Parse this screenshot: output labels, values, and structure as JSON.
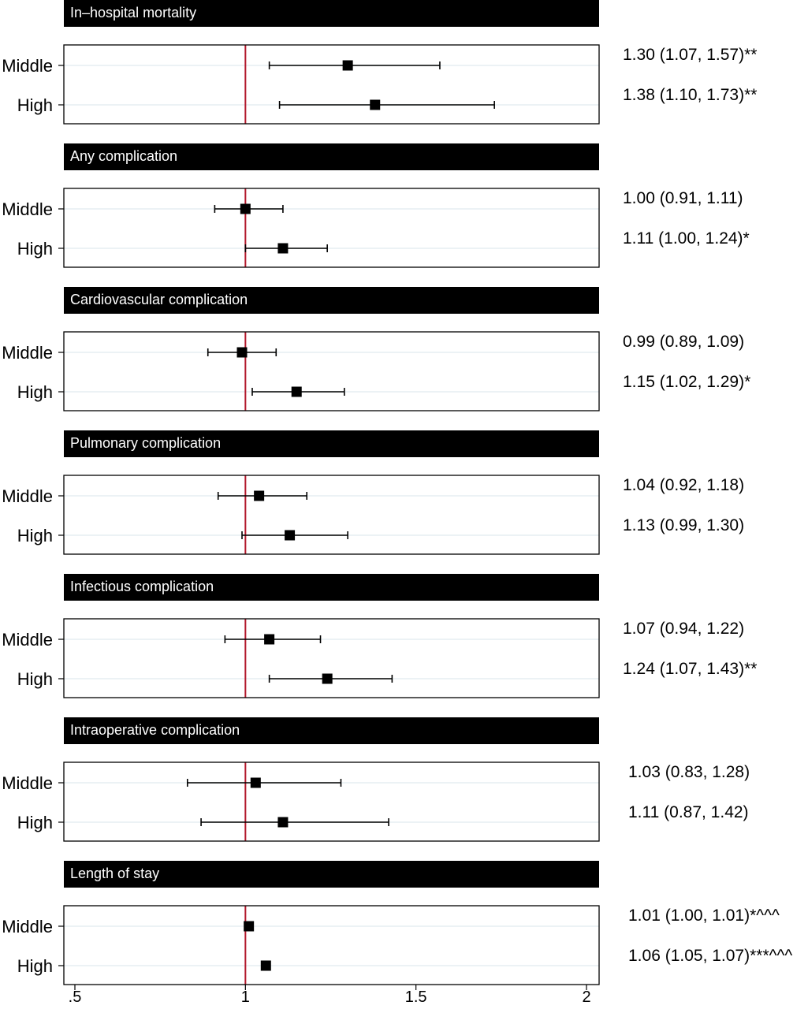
{
  "colors": {
    "header_background": "#000000",
    "header_text": "#ffffff",
    "reference_line": "#b2182b",
    "row_guide": "#e6eef2",
    "marker": "#000000"
  },
  "chart_data": {
    "type": "forest",
    "reference_value": 1,
    "xlim": [
      0.5,
      2
    ],
    "x_ticks": [
      {
        "value": 0.5,
        "label": ".5"
      },
      {
        "value": 1,
        "label": "1"
      },
      {
        "value": 1.5,
        "label": "1.5"
      },
      {
        "value": 2,
        "label": "2"
      }
    ],
    "panels": [
      {
        "title": "In–hospital mortality",
        "rows": [
          {
            "label": "Middle",
            "estimate": 1.3,
            "lower": 1.07,
            "upper": 1.57,
            "text": "1.30 (1.07, 1.57)**"
          },
          {
            "label": "High",
            "estimate": 1.38,
            "lower": 1.1,
            "upper": 1.73,
            "text": "1.38 (1.10, 1.73)**"
          }
        ]
      },
      {
        "title": "Any complication",
        "rows": [
          {
            "label": "Middle",
            "estimate": 1.0,
            "lower": 0.91,
            "upper": 1.11,
            "text": "1.00 (0.91, 1.11)"
          },
          {
            "label": "High",
            "estimate": 1.11,
            "lower": 1.0,
            "upper": 1.24,
            "text": "1.11 (1.00, 1.24)*"
          }
        ]
      },
      {
        "title": "Cardiovascular complication",
        "rows": [
          {
            "label": "Middle",
            "estimate": 0.99,
            "lower": 0.89,
            "upper": 1.09,
            "text": "0.99 (0.89, 1.09)"
          },
          {
            "label": "High",
            "estimate": 1.15,
            "lower": 1.02,
            "upper": 1.29,
            "text": "1.15 (1.02, 1.29)*"
          }
        ]
      },
      {
        "title": "Pulmonary complication",
        "rows": [
          {
            "label": "Middle",
            "estimate": 1.04,
            "lower": 0.92,
            "upper": 1.18,
            "text": "1.04 (0.92, 1.18)"
          },
          {
            "label": "High",
            "estimate": 1.13,
            "lower": 0.99,
            "upper": 1.3,
            "text": "1.13 (0.99, 1.30)"
          }
        ]
      },
      {
        "title": "Infectious complication",
        "rows": [
          {
            "label": "Middle",
            "estimate": 1.07,
            "lower": 0.94,
            "upper": 1.22,
            "text": "1.07 (0.94, 1.22)"
          },
          {
            "label": "High",
            "estimate": 1.24,
            "lower": 1.07,
            "upper": 1.43,
            "text": "1.24 (1.07, 1.43)**"
          }
        ]
      },
      {
        "title": "Intraoperative complication",
        "rows": [
          {
            "label": "Middle",
            "estimate": 1.03,
            "lower": 0.83,
            "upper": 1.28,
            "text": "1.03 (0.83, 1.28)"
          },
          {
            "label": "High",
            "estimate": 1.11,
            "lower": 0.87,
            "upper": 1.42,
            "text": "1.11 (0.87, 1.42)"
          }
        ]
      },
      {
        "title": "Length of stay",
        "rows": [
          {
            "label": "Middle",
            "estimate": 1.01,
            "lower": 1.0,
            "upper": 1.01,
            "text": "1.01 (1.00, 1.01)*^^^"
          },
          {
            "label": "High",
            "estimate": 1.06,
            "lower": 1.05,
            "upper": 1.07,
            "text": "1.06 (1.05, 1.07)***^^^"
          }
        ]
      }
    ]
  }
}
